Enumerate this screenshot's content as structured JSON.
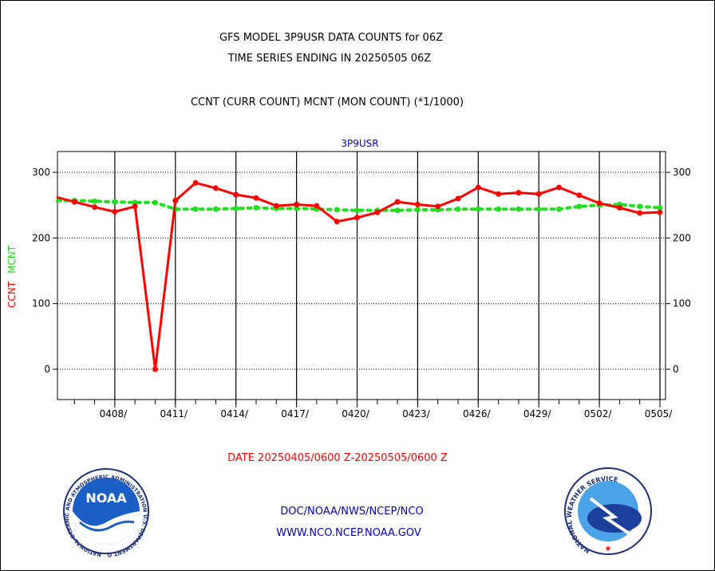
{
  "header": {
    "title_line1": "GFS MODEL 3P9USR DATA COUNTS for 06Z",
    "title_line2": "TIME SERIES ENDING IN 20250505 06Z",
    "subtitle": "CCNT (CURR COUNT) MCNT (MON COUNT) (*1/1000)"
  },
  "colors": {
    "ccnt": "#ff0000",
    "mcnt": "#22dd22",
    "panel_title": "#0000cc",
    "footer_links": "#0000cc"
  },
  "chart_data": {
    "type": "line",
    "title": "3P9USR",
    "xlabel": "DATE 20250405/0600 Z-20250505/0600 Z",
    "ylabel_parts": [
      "CCNT",
      "MCNT"
    ],
    "ylim": [
      -45,
      330
    ],
    "yticks": [
      0,
      100,
      200,
      300
    ],
    "x_start": "0405",
    "x_end": "0505",
    "xtick_labels": [
      "0408/",
      "0411/",
      "0414/",
      "0417/",
      "0420/",
      "0423/",
      "0426/",
      "0429/",
      "0502/",
      "0505/"
    ],
    "grid": true,
    "series": [
      {
        "name": "CCNT",
        "values": [
          263,
          255,
          247,
          240,
          248,
          0,
          257,
          284,
          276,
          266,
          261,
          249,
          251,
          249,
          225,
          231,
          239,
          255,
          251,
          248,
          260,
          277,
          267,
          269,
          267,
          277,
          265,
          253,
          246,
          238,
          239
        ]
      },
      {
        "name": "MCNT",
        "values": [
          257,
          257,
          256,
          255,
          254,
          254,
          244,
          244,
          244,
          245,
          246,
          245,
          245,
          244,
          243,
          242,
          242,
          242,
          243,
          243,
          244,
          244,
          244,
          244,
          244,
          244,
          248,
          250,
          251,
          248,
          246
        ]
      }
    ]
  },
  "footer": {
    "line1": "DOC/NOAA/NWS/NCEP/NCO",
    "line2": "WWW.NCO.NCEP.NOAA.GOV"
  },
  "logos": {
    "noaa_text": "NOAA",
    "noaa_ring": "NATIONAL OCEANIC AND ATMOSPHERIC ADMINISTRATION U.S. DEPARTMENT OF COMMERCE",
    "nws_ring": "NATIONAL WEATHER SERVICE"
  }
}
